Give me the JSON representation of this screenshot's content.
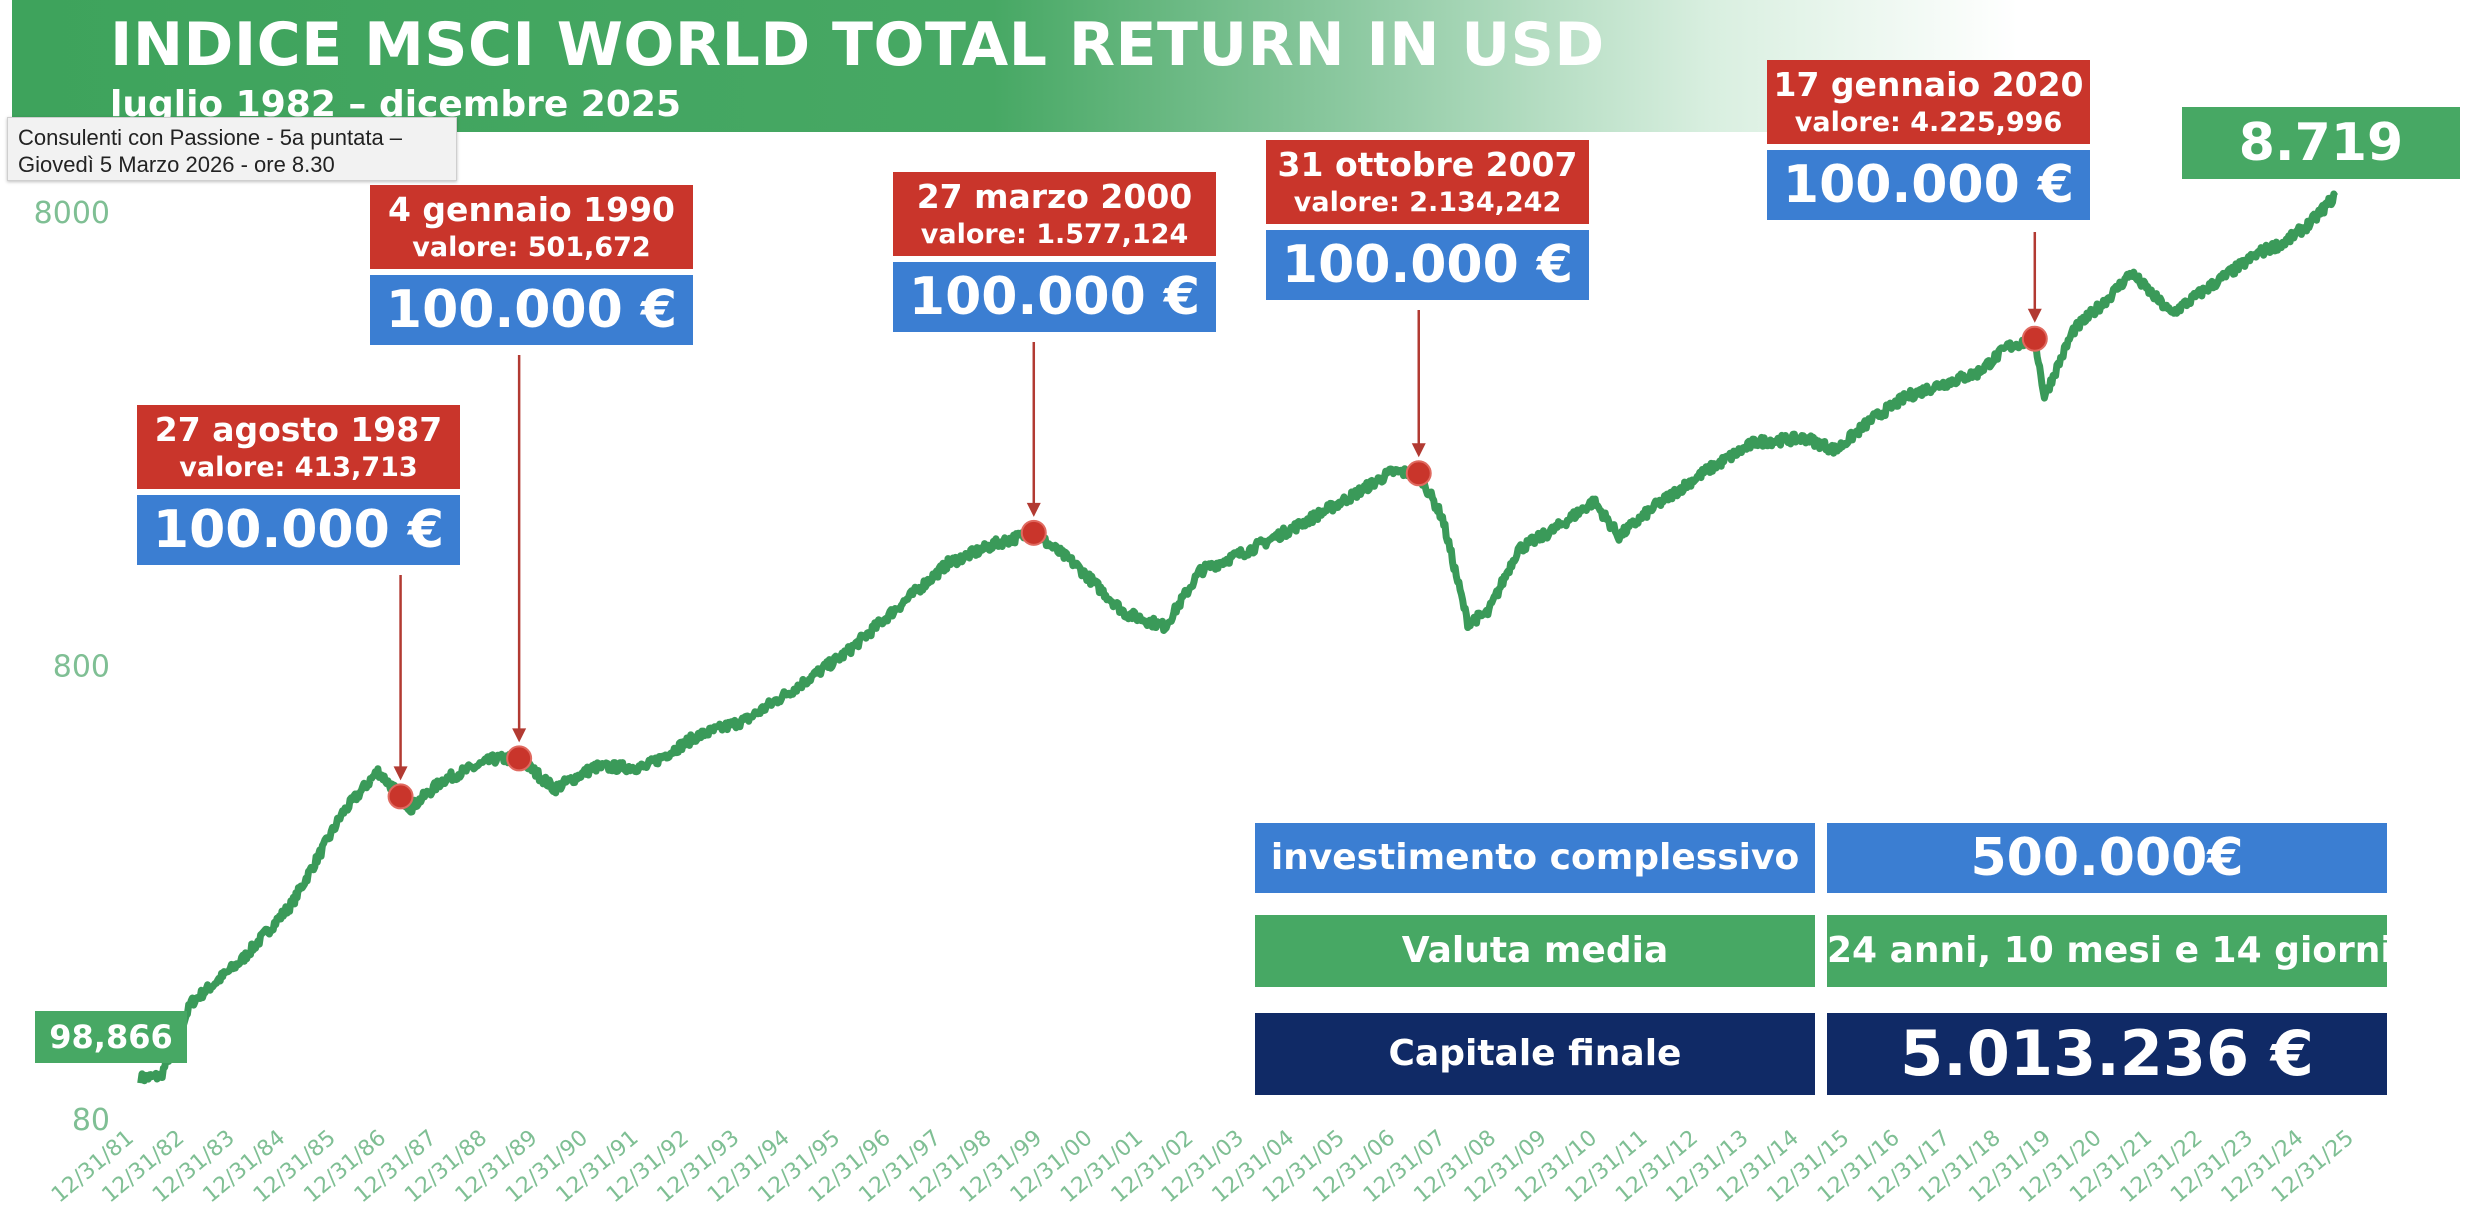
{
  "title": "INDICE MSCI WORLD TOTAL RETURN IN USD",
  "subtitle": "luglio 1982 – dicembre 2025",
  "tooltip": {
    "line1": "Consulenti con Passione - 5a puntata  –",
    "line2": "Giovedì 5 Marzo 2026 -  ore 8.30"
  },
  "colors": {
    "line": "#3a9a59",
    "marker": "#c9352b",
    "date_box": "#c9352b",
    "amount_box": "#3b7ed2",
    "green_box": "#47a864",
    "navy_box": "#102a66",
    "axis_text": "#7fbf94"
  },
  "start_badge": "98,866",
  "final_badge": "8.719",
  "annotations": [
    {
      "date": "27 agosto 1987",
      "value": "valore: 413,713",
      "amount": "100.000 €"
    },
    {
      "date": "4 gennaio 1990",
      "value": "valore: 501,672",
      "amount": "100.000 €"
    },
    {
      "date": "27 marzo 2000",
      "value": "valore: 1.577,124",
      "amount": "100.000 €"
    },
    {
      "date": "31 ottobre 2007",
      "value": "valore: 2.134,242",
      "amount": "100.000 €"
    },
    {
      "date": "17 gennaio 2020",
      "value": "valore: 4.225,996",
      "amount": "100.000 €"
    }
  ],
  "summary": {
    "investment_label": "investimento complessivo",
    "investment_value": "500.000€",
    "valuta_label": "Valuta media",
    "valuta_value": "24 anni, 10 mesi e 14 giorni",
    "capital_label": "Capitale finale",
    "capital_value": "5.013.236  €"
  },
  "chart_data": {
    "type": "line",
    "title": "INDICE MSCI WORLD TOTAL RETURN IN USD",
    "subtitle": "luglio 1982 – dicembre 2025",
    "y_scale": "log",
    "ylim": [
      80,
      10000
    ],
    "y_ticks": [
      80,
      800,
      8000
    ],
    "y_tick_labels": [
      "80",
      "800",
      "8000"
    ],
    "x_tick_labels": [
      "12/31/81",
      "12/31/82",
      "12/31/83",
      "12/31/84",
      "12/31/85",
      "12/31/86",
      "12/31/87",
      "12/31/88",
      "12/31/89",
      "12/31/90",
      "12/31/91",
      "12/31/92",
      "12/31/93",
      "12/31/94",
      "12/31/95",
      "12/31/96",
      "12/31/97",
      "12/31/98",
      "12/31/99",
      "12/31/00",
      "12/31/01",
      "12/31/02",
      "12/31/03",
      "12/31/04",
      "12/31/05",
      "12/31/06",
      "12/31/07",
      "12/31/08",
      "12/31/09",
      "12/31/10",
      "12/31/11",
      "12/31/12",
      "12/31/13",
      "12/31/14",
      "12/31/15",
      "12/31/16",
      "12/31/17",
      "12/31/18",
      "12/31/19",
      "12/31/20",
      "12/31/21",
      "12/31/22",
      "12/31/23",
      "12/31/24",
      "12/31/25"
    ],
    "grid": false,
    "legend": "none",
    "series": [
      {
        "x": [
          1982.5,
          1982.9,
          1983.5,
          1984.5,
          1985.5,
          1986.5,
          1987.2,
          1987.65,
          1987.85,
          1988.5,
          1989.5,
          1990.0,
          1990.7,
          1991.5,
          1992.5,
          1993.5,
          1994.5,
          1995.5,
          1996.5,
          1997.5,
          1998.5,
          1999.5,
          2000.2,
          2001.0,
          2002.0,
          2002.8,
          2003.5,
          2004.5,
          2005.5,
          2006.5,
          2007.3,
          2007.83,
          2008.3,
          2008.8,
          2009.2,
          2009.8,
          2010.5,
          2011.3,
          2011.8,
          2012.5,
          2013.5,
          2014.5,
          2015.5,
          2016.1,
          2016.8,
          2017.5,
          2018.0,
          2018.9,
          2019.5,
          2020.04,
          2020.23,
          2020.8,
          2021.5,
          2021.95,
          2022.75,
          2023.5,
          2024.5,
          2025.0,
          2025.5,
          2025.99
        ],
        "y": [
          98.9,
          100,
          145,
          180,
          240,
          380,
          470,
          413.7,
          390,
          450,
          500,
          501.7,
          430,
          480,
          480,
          560,
          610,
          720,
          860,
          1080,
          1350,
          1500,
          1577,
          1350,
          1050,
          980,
          1300,
          1450,
          1650,
          1900,
          2150,
          2134,
          1700,
          1000,
          1050,
          1450,
          1600,
          1850,
          1550,
          1800,
          2150,
          2500,
          2550,
          2400,
          2800,
          3150,
          3300,
          3550,
          4050,
          4226,
          3150,
          4400,
          5200,
          5900,
          4800,
          5500,
          6550,
          6900,
          7600,
          8719
        ]
      }
    ]
  }
}
